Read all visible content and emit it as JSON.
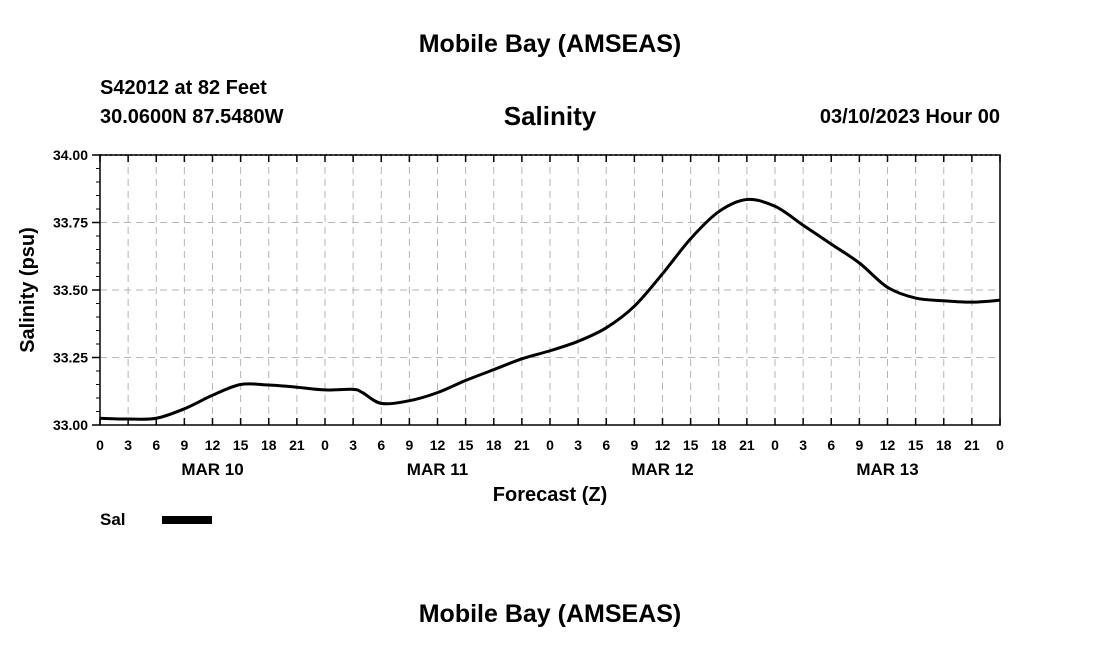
{
  "header": {
    "title": "Mobile Bay (AMSEAS)",
    "station": "S42012 at 82 Feet",
    "coords": "30.0600N  87.5480W",
    "forecast_time": "03/10/2023 Hour 00"
  },
  "footer": {
    "title": "Mobile Bay (AMSEAS)"
  },
  "chart_data": {
    "type": "line",
    "title": "Salinity",
    "xlabel": "Forecast (Z)",
    "ylabel": "Salinity (psu)",
    "ylim": [
      33.0,
      34.0
    ],
    "yticks": [
      "33.00",
      "33.25",
      "33.50",
      "33.75",
      "34.00"
    ],
    "xlim_hours": [
      0,
      96
    ],
    "xtick_labels": [
      "0",
      "3",
      "6",
      "9",
      "12",
      "15",
      "18",
      "21",
      "0",
      "3",
      "6",
      "9",
      "12",
      "15",
      "18",
      "21",
      "0",
      "3",
      "6",
      "9",
      "12",
      "15",
      "18",
      "21",
      "0",
      "3",
      "6",
      "9",
      "12",
      "15",
      "18",
      "21",
      "0"
    ],
    "day_labels": [
      {
        "label": "MAR 10",
        "hour": 12
      },
      {
        "label": "MAR 11",
        "hour": 36
      },
      {
        "label": "MAR 12",
        "hour": 60
      },
      {
        "label": "MAR 13",
        "hour": 84
      }
    ],
    "grid": true,
    "legend": [
      {
        "name": "Sal",
        "color": "#000000"
      }
    ],
    "series": [
      {
        "name": "Sal",
        "color": "#000000",
        "x": [
          0,
          3,
          6,
          9,
          12,
          15,
          18,
          21,
          24,
          27,
          28,
          30,
          33,
          36,
          39,
          42,
          45,
          48,
          51,
          54,
          57,
          60,
          63,
          66,
          69,
          72,
          75,
          78,
          81,
          84,
          87,
          90,
          93,
          96
        ],
        "y": [
          33.025,
          33.022,
          33.025,
          33.06,
          33.11,
          33.15,
          33.148,
          33.14,
          33.13,
          33.132,
          33.12,
          33.08,
          33.09,
          33.12,
          33.165,
          33.205,
          33.245,
          33.275,
          33.31,
          33.36,
          33.44,
          33.56,
          33.69,
          33.79,
          33.835,
          33.81,
          33.74,
          33.67,
          33.6,
          33.51,
          33.47,
          33.46,
          33.455,
          33.462
        ]
      }
    ]
  }
}
